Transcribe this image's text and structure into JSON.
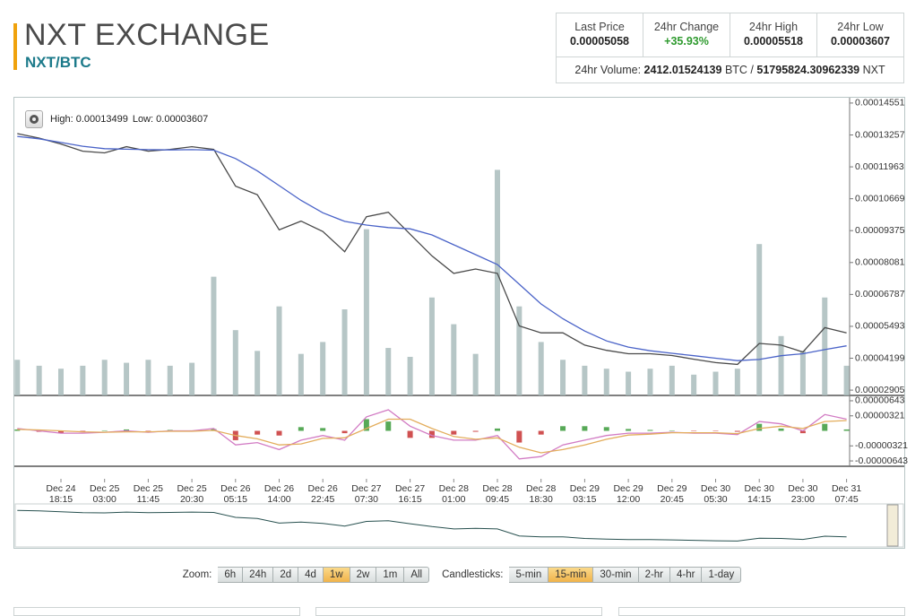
{
  "header": {
    "title": "NXT EXCHANGE",
    "pair": "NXT/BTC"
  },
  "stats": {
    "items": [
      {
        "label": "Last Price",
        "value": "0.00005058"
      },
      {
        "label": "24hr Change",
        "value": "+35.93%",
        "color": "#2e9a2e"
      },
      {
        "label": "24hr High",
        "value": "0.00005518"
      },
      {
        "label": "24hr Low",
        "value": "0.00003607"
      }
    ],
    "volume": {
      "label": "24hr Volume:",
      "btc": "2412.01524139",
      "btc_unit": "BTC",
      "separator": "/",
      "nxt": "51795824.30962339",
      "nxt_unit": "NXT"
    }
  },
  "chart_data": [
    {
      "type": "line",
      "annotations": [
        "High: 0.00013499",
        "Low: 0.00003607"
      ],
      "categories": [
        null,
        null,
        "Dec 24 18:15",
        null,
        "Dec 25 03:00",
        null,
        "Dec 25 11:45",
        null,
        "Dec 25 20:30",
        null,
        "Dec 26 05:15",
        null,
        "Dec 26 14:00",
        null,
        "Dec 26 22:45",
        null,
        "Dec 27 07:30",
        null,
        "Dec 27 16:15",
        null,
        "Dec 28 01:00",
        null,
        "Dec 28 09:45",
        null,
        "Dec 28 18:30",
        null,
        "Dec 29 03:15",
        null,
        "Dec 29 12:00",
        null,
        "Dec 29 20:45",
        null,
        "Dec 30 05:30",
        null,
        "Dec 30 14:15",
        null,
        "Dec 30 23:00",
        null,
        "Dec 31 07:45"
      ],
      "ylim": [
        2.69e-05,
        0.0001473
      ],
      "yticks": [
        0.00014551,
        0.00013257,
        0.00011963,
        0.00010669,
        9.375e-05,
        8.081e-05,
        6.787e-05,
        5.493e-05,
        4.199e-05,
        2.905e-05
      ],
      "y2lim": [
        0,
        100
      ],
      "series": [
        {
          "type": "bar",
          "axis": "y2",
          "color": "#a9bcbc",
          "values": [
            12,
            10,
            9,
            10,
            12,
            11,
            12,
            10,
            11,
            40,
            22,
            15,
            30,
            14,
            18,
            29,
            56,
            16,
            13,
            33,
            24,
            14,
            76,
            30,
            18,
            12,
            10,
            9,
            8,
            9,
            10,
            7,
            8,
            9,
            51,
            20,
            15,
            33,
            10
          ]
        },
        {
          "type": "line",
          "color": "#4a4a4a",
          "values": [
            0.0001331,
            0.0001313,
            0.0001289,
            0.000126,
            0.0001253,
            0.0001278,
            0.000126,
            0.0001267,
            0.0001278,
            0.0001267,
            0.0001118,
            0.0001083,
            9.41e-05,
            9.76e-05,
            9.34e-05,
            8.52e-05,
            9.94e-05,
            0.0001012,
            9.23e-05,
            8.35e-05,
            7.64e-05,
            7.82e-05,
            7.64e-05,
            5.51e-05,
            5.23e-05,
            5.23e-05,
            4.73e-05,
            4.52e-05,
            4.38e-05,
            4.38e-05,
            4.31e-05,
            4.16e-05,
            4.02e-05,
            3.95e-05,
            4.8e-05,
            4.73e-05,
            4.45e-05,
            5.44e-05,
            5.23e-05
          ]
        },
        {
          "type": "line",
          "color": "#4a63c8",
          "values": [
            0.000132,
            0.000131,
            0.0001295,
            0.000128,
            0.000127,
            0.0001268,
            0.0001266,
            0.0001265,
            0.0001266,
            0.0001264,
            0.000123,
            0.000118,
            0.000112,
            0.000106,
            0.000101,
            9.75e-05,
            9.6e-05,
            9.5e-05,
            9.45e-05,
            9.2e-05,
            8.8e-05,
            8.4e-05,
            8e-05,
            7.2e-05,
            6.4e-05,
            5.8e-05,
            5.3e-05,
            4.9e-05,
            4.65e-05,
            4.5e-05,
            4.4e-05,
            4.3e-05,
            4.2e-05,
            4.1e-05,
            4.15e-05,
            4.3e-05,
            4.38e-05,
            4.55e-05,
            4.7e-05
          ]
        }
      ]
    },
    {
      "type": "line",
      "ylim": [
        -7.57e-06,
        7.19e-06
      ],
      "yticks": [
        6.43e-06,
        3.21e-06,
        -3.21e-06,
        -6.43e-06
      ],
      "series": [
        {
          "type": "bar",
          "color": "#3a9a3a",
          "negative_color": "#c83232",
          "values": [
            3e-07,
            -2e-07,
            -5e-07,
            -3e-07,
            1e-07,
            3e-07,
            -1e-07,
            2e-07,
            1e-07,
            4e-07,
            -2e-06,
            -8e-07,
            -1e-06,
            8e-07,
            6e-07,
            -5e-07,
            2.5e-06,
            2e-06,
            -1.5e-06,
            -1.5e-06,
            -8e-07,
            -2e-07,
            5e-07,
            -2.5e-06,
            -8e-07,
            1e-06,
            1e-06,
            8e-07,
            4e-07,
            2e-07,
            1e-07,
            -1e-07,
            -1e-07,
            -2e-07,
            1.5e-06,
            5e-07,
            -5e-07,
            1.5e-06,
            3e-07
          ]
        },
        {
          "type": "line",
          "color": "#d27cc4",
          "values": [
            5e-07,
            0,
            -5e-07,
            -5e-07,
            -3e-07,
            0,
            -3e-07,
            0,
            0,
            5e-07,
            -3e-06,
            -2.5e-06,
            -4e-06,
            -2e-06,
            -1e-06,
            -2e-06,
            3e-06,
            4.5e-06,
            1e-06,
            -1e-06,
            -2e-06,
            -2e-06,
            -1e-06,
            -6e-06,
            -5.5e-06,
            -3e-06,
            -2e-06,
            -1e-06,
            -5e-07,
            -5e-07,
            -3e-07,
            -5e-07,
            -5e-07,
            -8e-07,
            2e-06,
            1.5e-06,
            0,
            3.5e-06,
            2.5e-06
          ]
        },
        {
          "type": "line",
          "color": "#e3ad5c",
          "values": [
            3e-07,
            2e-07,
            0,
            -2e-07,
            -3e-07,
            -2e-07,
            -2e-07,
            -1e-07,
            -1e-07,
            1e-07,
            -1e-06,
            -1.7e-06,
            -3e-06,
            -2.8e-06,
            -1.6e-06,
            -1.5e-06,
            5e-07,
            2.5e-06,
            2.5e-06,
            5e-07,
            -1.2e-06,
            -1.8e-06,
            -1.5e-06,
            -3.5e-06,
            -4.7e-06,
            -4e-06,
            -3e-06,
            -1.8e-06,
            -9e-07,
            -7e-07,
            -4e-07,
            -4e-07,
            -4e-07,
            -6e-07,
            5e-07,
            1e-06,
            5e-07,
            2e-06,
            2.2e-06
          ]
        }
      ]
    }
  ],
  "controls": {
    "zoom": {
      "label": "Zoom:",
      "options": [
        "6h",
        "24h",
        "2d",
        "4d",
        "1w",
        "2w",
        "1m",
        "All"
      ],
      "selected": "1w"
    },
    "candlesticks": {
      "label": "Candlesticks:",
      "options": [
        "5-min",
        "15-min",
        "30-min",
        "2-hr",
        "4-hr",
        "1-day"
      ],
      "selected": "15-min"
    }
  }
}
